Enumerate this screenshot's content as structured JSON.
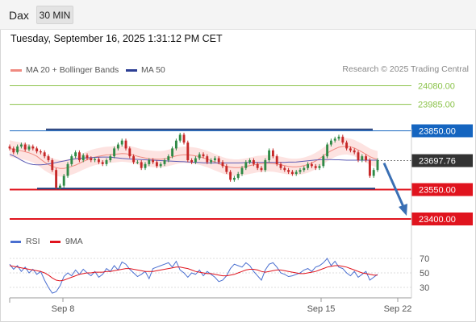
{
  "header": {
    "instrument": "Dax",
    "timeframe": "30 MIN"
  },
  "datetime": "Tuesday, September 16, 2025 1:31:12 PM CET",
  "legend": {
    "bb_label": "MA 20 + Bollinger Bands",
    "ma50_label": "MA 50",
    "credit": "Research © 2025 Trading Central"
  },
  "colors": {
    "bb_line": "#f08a80",
    "bb_band": "#fde3e1",
    "ma50": "#5b5bb4",
    "up_candle": "#2f8a46",
    "down_candle": "#c62828",
    "target_green": "#8bc34a",
    "pivot_blue": "#1565c0",
    "support_red": "#e0141e",
    "rsi": "#4a6fd0",
    "rsi_ma": "#e0141e",
    "arrow": "#3a6fb4",
    "last_price_tag": "#333333"
  },
  "chart_data": [
    {
      "type": "candlestick",
      "title": "Dax",
      "x_ticks": [
        "Sep 8",
        "Sep 15",
        "Sep 22"
      ],
      "y_range": [
        23370,
        24110
      ],
      "price_levels": [
        {
          "label": "24080.00",
          "value": 24080,
          "kind": "target"
        },
        {
          "label": "23985.00",
          "value": 23985,
          "kind": "target"
        },
        {
          "label": "23850.00",
          "value": 23850,
          "kind": "pivot"
        },
        {
          "label": "23697.76",
          "value": 23697.76,
          "kind": "last"
        },
        {
          "label": "23550.00",
          "value": 23550,
          "kind": "support"
        },
        {
          "label": "23400.00",
          "value": 23400,
          "kind": "support"
        }
      ],
      "trading_range": {
        "top": 23857,
        "bottom": 23555
      },
      "closes": [
        23760,
        23740,
        23770,
        23780,
        23755,
        23770,
        23760,
        23745,
        23740,
        23720,
        23700,
        23650,
        23560,
        23570,
        23620,
        23680,
        23720,
        23740,
        23700,
        23725,
        23710,
        23700,
        23705,
        23690,
        23680,
        23700,
        23720,
        23760,
        23780,
        23800,
        23760,
        23720,
        23690,
        23690,
        23660,
        23680,
        23700,
        23690,
        23670,
        23680,
        23700,
        23720,
        23760,
        23800,
        23830,
        23790,
        23700,
        23690,
        23710,
        23730,
        23720,
        23690,
        23700,
        23710,
        23690,
        23670,
        23640,
        23600,
        23610,
        23630,
        23660,
        23690,
        23700,
        23680,
        23660,
        23650,
        23700,
        23750,
        23720,
        23680,
        23660,
        23650,
        23640,
        23630,
        23640,
        23650,
        23660,
        23680,
        23670,
        23660,
        23670,
        23720,
        23780,
        23800,
        23810,
        23820,
        23790,
        23760,
        23750,
        23740,
        23700,
        23720,
        23700,
        23620,
        23650,
        23700
      ],
      "ma20": [
        23760,
        23755,
        23752,
        23748,
        23743,
        23738,
        23730,
        23720,
        23705,
        23690,
        23678,
        23668,
        23662,
        23658,
        23658,
        23662,
        23668,
        23675,
        23684,
        23694,
        23702,
        23710,
        23716,
        23720,
        23724,
        23727,
        23728,
        23730,
        23732,
        23734,
        23733,
        23730,
        23726,
        23720,
        23715,
        23711,
        23708,
        23706,
        23705,
        23705,
        23707,
        23712,
        23717,
        23722,
        23726,
        23728,
        23727,
        23725,
        23722,
        23718,
        23712,
        23706,
        23698,
        23690,
        23682,
        23674,
        23668,
        23664,
        23662,
        23662,
        23664,
        23668,
        23672,
        23676,
        23680,
        23682,
        23684,
        23684,
        23683,
        23680,
        23676,
        23672,
        23668,
        23666,
        23666,
        23668,
        23672,
        23678,
        23686,
        23696,
        23708,
        23722,
        23736,
        23748,
        23758,
        23766,
        23770,
        23771,
        23768,
        23762,
        23752,
        23742,
        23730,
        23718,
        23710,
        23705
      ],
      "ma50": [
        23730,
        23722,
        23712,
        23700,
        23690,
        23682,
        23678,
        23676,
        23676,
        23678,
        23681,
        23684,
        23688,
        23692,
        23696,
        23700,
        23704,
        23707,
        23709,
        23711,
        23712,
        23713,
        23714,
        23715,
        23716,
        23716,
        23715,
        23713,
        23711,
        23709,
        23708,
        23706,
        23705,
        23704,
        23703,
        23702,
        23701,
        23700,
        23699,
        23698,
        23697,
        23696,
        23695,
        23694,
        23693,
        23692,
        23691,
        23690,
        23689,
        23688,
        23687,
        23686,
        23686,
        23686,
        23686,
        23686,
        23686,
        23686,
        23686,
        23686,
        23687,
        23688,
        23688,
        23689,
        23689,
        23689,
        23689,
        23689,
        23689,
        23689,
        23689,
        23689,
        23690,
        23690,
        23691,
        23693,
        23695,
        23697,
        23699,
        23701,
        23702,
        23703,
        23703,
        23703,
        23702,
        23702,
        23701,
        23700,
        23700,
        23700,
        23700,
        23700,
        23700,
        23700,
        23700,
        23700
      ]
    },
    {
      "type": "line",
      "title": "RSI",
      "y_ticks": [
        "70",
        "50",
        "30"
      ],
      "y_range": [
        10,
        85
      ],
      "series": [
        {
          "name": "RSI",
          "values": [
            62,
            55,
            60,
            52,
            58,
            50,
            55,
            48,
            52,
            40,
            30,
            22,
            24,
            32,
            45,
            50,
            46,
            54,
            48,
            55,
            50,
            46,
            52,
            44,
            48,
            56,
            52,
            60,
            54,
            65,
            62,
            55,
            50,
            45,
            48,
            52,
            42,
            56,
            58,
            60,
            62,
            64,
            58,
            66,
            54,
            50,
            44,
            50,
            48,
            54,
            46,
            52,
            48,
            44,
            38,
            40,
            46,
            56,
            62,
            60,
            58,
            64,
            60,
            52,
            46,
            40,
            54,
            62,
            64,
            58,
            50,
            48,
            45,
            46,
            48,
            50,
            54,
            56,
            52,
            58,
            60,
            64,
            70,
            60,
            66,
            58,
            56,
            50,
            46,
            52,
            44,
            48,
            52,
            40,
            44,
            48
          ]
        },
        {
          "name": "9MA",
          "values": [
            60,
            59,
            58,
            57,
            56,
            55,
            54,
            53,
            52,
            50,
            47,
            43,
            40,
            39,
            40,
            42,
            44,
            46,
            48,
            49,
            50,
            50,
            51,
            51,
            51,
            52,
            52,
            53,
            54,
            55,
            56,
            56,
            55,
            54,
            53,
            52,
            52,
            52,
            53,
            54,
            55,
            56,
            57,
            58,
            58,
            57,
            56,
            54,
            52,
            51,
            50,
            49,
            49,
            48,
            47,
            46,
            46,
            47,
            48,
            50,
            52,
            54,
            55,
            55,
            54,
            52,
            51,
            52,
            53,
            54,
            54,
            53,
            52,
            51,
            50,
            49,
            49,
            50,
            51,
            52,
            54,
            56,
            58,
            59,
            60,
            60,
            59,
            58,
            56,
            54,
            52,
            50,
            49,
            48,
            47,
            47
          ]
        }
      ]
    }
  ],
  "rsi_legend": {
    "rsi_label": "RSI",
    "ma_label": "9MA"
  }
}
